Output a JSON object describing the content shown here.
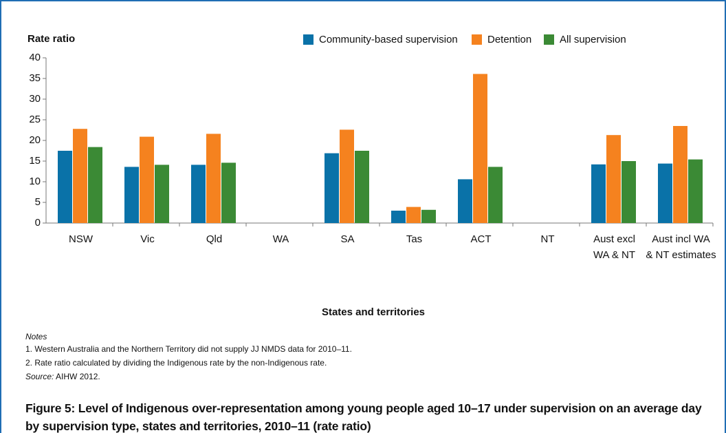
{
  "chart_data": {
    "type": "bar",
    "y_label": "Rate ratio",
    "x_label": "States and territories",
    "categories": [
      "NSW",
      "Vic",
      "Qld",
      "WA",
      "SA",
      "Tas",
      "ACT",
      "NT",
      "Aust excl\nWA & NT",
      "Aust incl WA\n& NT estimates"
    ],
    "series": [
      {
        "name": "Community-based supervision",
        "color": "#0a72a8",
        "values": [
          17.5,
          13.6,
          14.1,
          null,
          16.9,
          3.0,
          10.6,
          null,
          14.2,
          14.4
        ]
      },
      {
        "name": "Detention",
        "color": "#f5821f",
        "values": [
          22.8,
          20.9,
          21.6,
          null,
          22.6,
          3.9,
          36.1,
          null,
          21.3,
          23.5
        ]
      },
      {
        "name": "All supervision",
        "color": "#3b8a35",
        "values": [
          18.4,
          14.1,
          14.6,
          null,
          17.5,
          3.2,
          13.6,
          null,
          15.0,
          15.4
        ]
      }
    ],
    "ylim": [
      0,
      40
    ],
    "yticks": [
      0,
      5,
      10,
      15,
      20,
      25,
      30,
      35,
      40
    ],
    "grid": false,
    "legend": "top"
  },
  "notes_title": "Notes",
  "notes": [
    "1.  Western Australia and the Northern Territory did not supply JJ NMDS data for 2010–11.",
    "2.  Rate ratio calculated by dividing the Indigenous rate by the non-Indigenous rate."
  ],
  "source_label": "Source:",
  "source": "AIHW 2012.",
  "caption": "Figure 5: Level of Indigenous over-representation among young people aged 10–17 under supervision on an average day by supervision type, states and territories, 2010–11 (rate ratio)"
}
